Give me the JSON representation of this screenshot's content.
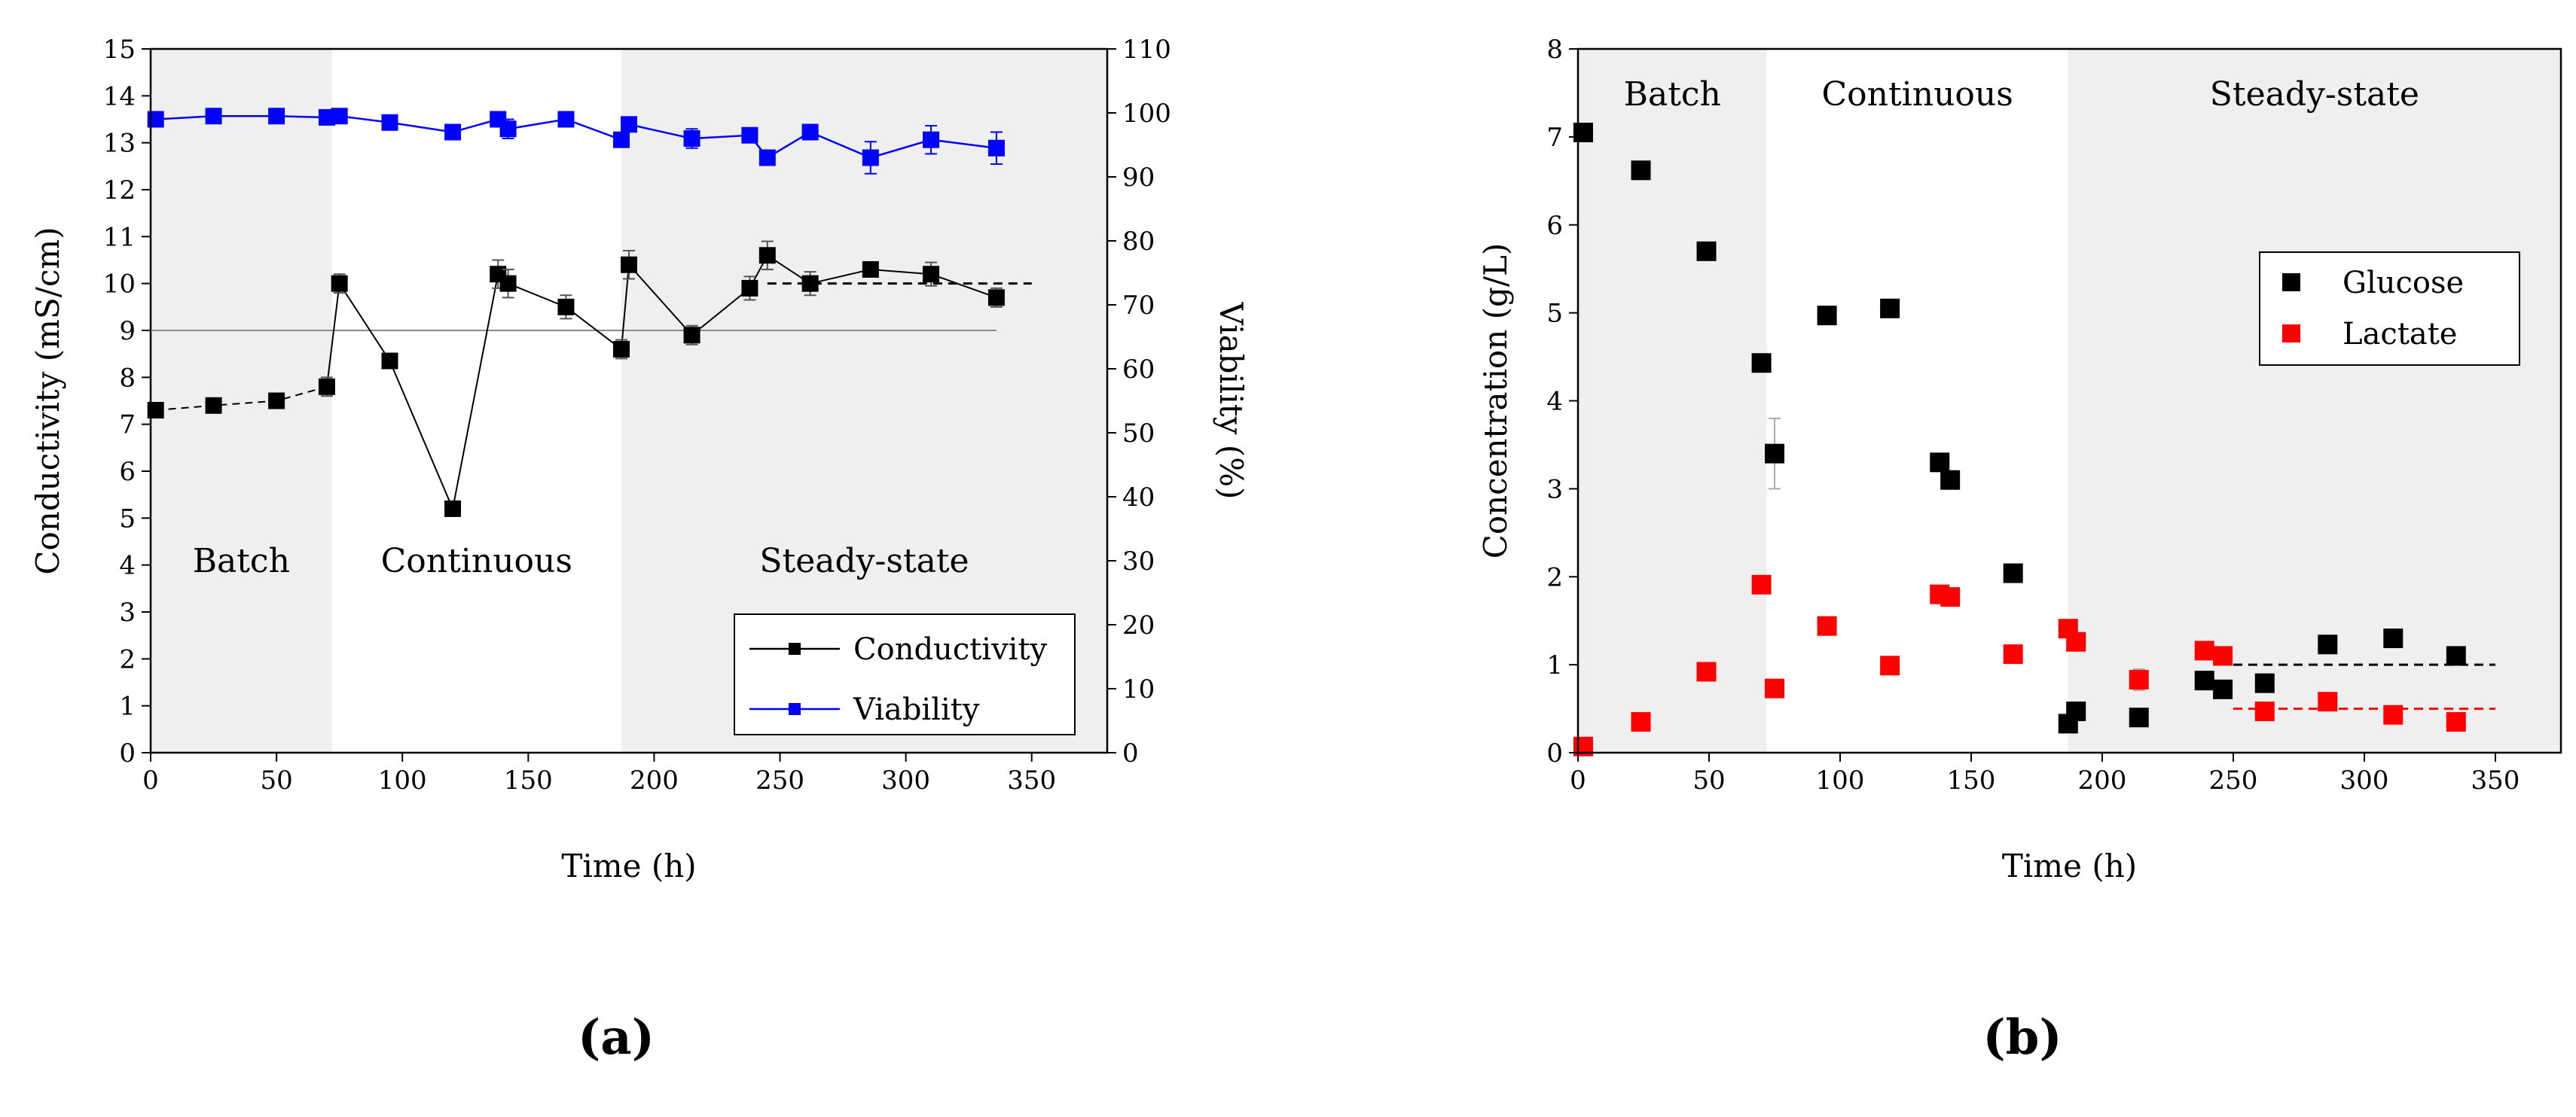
{
  "chart_data": [
    {
      "id": "a",
      "type": "line",
      "panel_label": "(a)",
      "xlabel": "Time (h)",
      "ylabel_left": "Conductivity (mS/cm)",
      "ylabel_right": "Viability (%)",
      "xlim": [
        0,
        380
      ],
      "ylim_left": [
        0,
        15
      ],
      "ylim_right": [
        0,
        110
      ],
      "xticks": [
        0,
        50,
        100,
        150,
        200,
        250,
        300,
        350
      ],
      "yticks_left": [
        0,
        1,
        2,
        3,
        4,
        5,
        6,
        7,
        8,
        9,
        10,
        11,
        12,
        13,
        14,
        15
      ],
      "yticks_right": [
        0,
        10,
        20,
        30,
        40,
        50,
        60,
        70,
        80,
        90,
        100,
        110
      ],
      "phases": [
        {
          "label": "Batch",
          "start": 0,
          "end": 72,
          "shaded": true
        },
        {
          "label": "Continuous",
          "start": 72,
          "end": 187,
          "shaded": false
        },
        {
          "label": "Steady-state",
          "start": 187,
          "end": 380,
          "shaded": true
        }
      ],
      "reference_line": {
        "y": 9,
        "from": 0,
        "to": 336
      },
      "steady_mean_line": {
        "y": 10.0,
        "from": 245,
        "to": 350
      },
      "series": [
        {
          "name": "Conductivity",
          "axis": "left",
          "color": "#000000",
          "x": [
            2,
            25,
            50,
            70,
            75,
            95,
            120,
            138,
            142,
            165,
            187,
            190,
            215,
            238,
            245,
            262,
            286,
            310,
            336
          ],
          "y": [
            7.3,
            7.4,
            7.5,
            7.8,
            10.0,
            8.35,
            5.2,
            10.2,
            10.0,
            9.5,
            8.6,
            10.4,
            8.9,
            9.9,
            10.6,
            10.0,
            10.3,
            10.2,
            9.7
          ],
          "err": [
            0.15,
            0.15,
            0.15,
            0.2,
            0.2,
            0.15,
            0.0,
            0.3,
            0.3,
            0.25,
            0.2,
            0.3,
            0.2,
            0.25,
            0.3,
            0.25,
            0.15,
            0.25,
            0.2
          ]
        },
        {
          "name": "Viability",
          "axis": "right",
          "color": "#0000ff",
          "x": [
            2,
            25,
            50,
            70,
            75,
            95,
            120,
            138,
            142,
            165,
            187,
            190,
            215,
            238,
            245,
            262,
            286,
            310,
            336
          ],
          "y": [
            99,
            99.5,
            99.5,
            99.3,
            99.5,
            98.5,
            97,
            99,
            97.5,
            99,
            95.8,
            98.2,
            96,
            96.5,
            93,
            97,
            93,
            95.8,
            94.5
          ],
          "err": [
            0.5,
            0.5,
            0.5,
            0.5,
            0.5,
            0.5,
            0.5,
            0.8,
            1.5,
            0.8,
            0.8,
            1.0,
            1.5,
            1.0,
            1.0,
            1.0,
            2.5,
            2.2,
            2.5
          ]
        }
      ],
      "legend": {
        "position": "bottom-right",
        "entries": [
          "Conductivity",
          "Viability"
        ]
      }
    },
    {
      "id": "b",
      "type": "scatter",
      "panel_label": "(b)",
      "xlabel": "Time (h)",
      "ylabel": "Concentration (g/L)",
      "xlim": [
        0,
        375
      ],
      "ylim": [
        0,
        8
      ],
      "xticks": [
        0,
        50,
        100,
        150,
        200,
        250,
        300,
        350
      ],
      "yticks": [
        0,
        1,
        2,
        3,
        4,
        5,
        6,
        7,
        8
      ],
      "phases": [
        {
          "label": "Batch",
          "start": 0,
          "end": 72,
          "shaded": true
        },
        {
          "label": "Continuous",
          "start": 72,
          "end": 187,
          "shaded": false
        },
        {
          "label": "Steady-state",
          "start": 187,
          "end": 375,
          "shaded": true
        }
      ],
      "series": [
        {
          "name": "Glucose",
          "color": "#000000",
          "x": [
            2,
            24,
            49,
            70,
            75,
            95,
            119,
            138,
            142,
            166,
            187,
            190,
            214,
            239,
            246,
            262,
            286,
            311,
            335
          ],
          "y": [
            7.05,
            6.62,
            5.7,
            4.43,
            3.4,
            4.97,
            5.05,
            3.3,
            3.1,
            2.04,
            0.33,
            0.47,
            0.4,
            0.82,
            0.72,
            0.79,
            1.23,
            1.3,
            1.1
          ],
          "err": [
            0,
            0,
            0,
            0,
            0.4,
            0,
            0,
            0,
            0,
            0,
            0,
            0,
            0,
            0,
            0,
            0,
            0,
            0,
            0
          ]
        },
        {
          "name": "Lactate",
          "color": "#ff0000",
          "x": [
            2,
            24,
            49,
            70,
            75,
            95,
            119,
            138,
            142,
            166,
            187,
            190,
            214,
            239,
            246,
            262,
            286,
            311,
            335
          ],
          "y": [
            0.07,
            0.35,
            0.92,
            1.91,
            0.73,
            1.44,
            0.99,
            1.8,
            1.77,
            1.12,
            1.41,
            1.26,
            0.83,
            1.16,
            1.1,
            0.47,
            0.58,
            0.43,
            0.35
          ],
          "err": [
            0,
            0,
            0,
            0,
            0,
            0,
            0,
            0,
            0,
            0,
            0,
            0,
            0.12,
            0,
            0,
            0,
            0,
            0,
            0
          ]
        }
      ],
      "mean_lines": [
        {
          "series": "Glucose",
          "y": 1.0,
          "from": 250,
          "to": 350
        },
        {
          "series": "Lactate",
          "y": 0.5,
          "from": 250,
          "to": 350
        }
      ],
      "legend": {
        "position": "right",
        "entries": [
          "Glucose",
          "Lactate"
        ]
      }
    }
  ]
}
